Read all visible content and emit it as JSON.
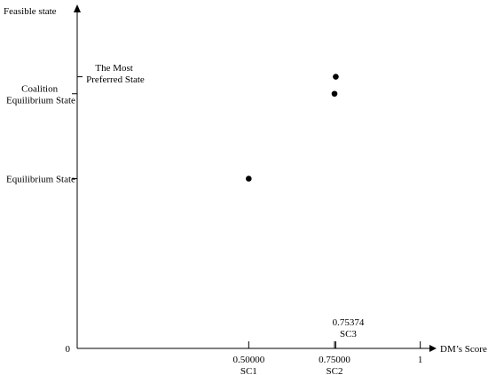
{
  "chart_data": {
    "type": "scatter",
    "x_label": "DM’s Score",
    "y_label": "Feasible state",
    "x": [
      0.5,
      0.75,
      0.75374
    ],
    "values": [
      2,
      3,
      3.2
    ],
    "point_labels": [
      "SC1",
      "SC2",
      "SC3"
    ],
    "color": "#000000",
    "xlim": [
      0,
      1.05
    ],
    "ylim": [
      0,
      4
    ],
    "xticks": [
      {
        "value": 0.5,
        "label": "0.50000"
      },
      {
        "value": 0.75,
        "label": "0.75000"
      },
      {
        "value": 0.75374,
        "label": "0.75374"
      },
      1
    ],
    "yticks": [
      0,
      {
        "value": 2,
        "label": "Equilibrium State"
      },
      {
        "value": 3,
        "label": "Coalition Equilibrium State"
      },
      {
        "value": 3.2,
        "label": "The Most Preferred State"
      }
    ]
  }
}
